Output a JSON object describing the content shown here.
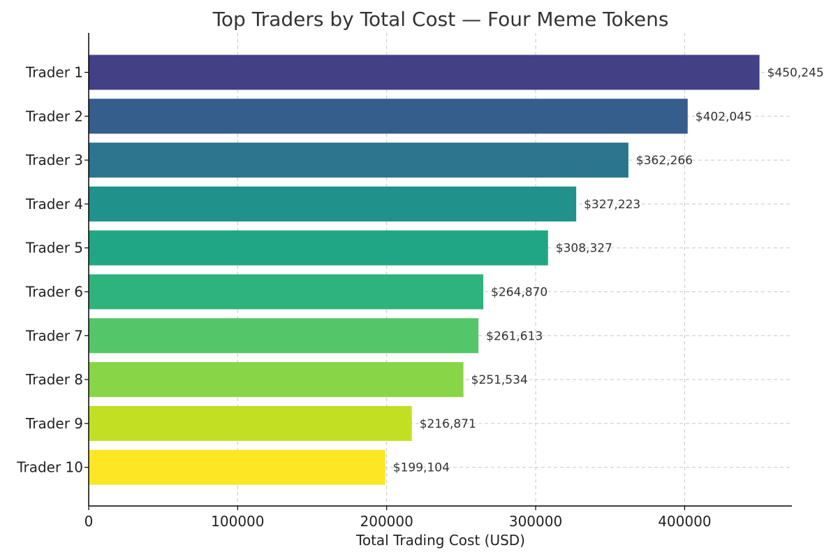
{
  "chart_data": {
    "type": "bar",
    "orientation": "horizontal",
    "title": "Top Traders by Total Cost — Four Meme Tokens",
    "xlabel": "Total Trading Cost (USD)",
    "ylabel": "",
    "xlim": [
      0,
      472000
    ],
    "x_ticks": [
      0,
      100000,
      200000,
      300000,
      400000
    ],
    "grid": true,
    "legend": "none",
    "categories": [
      "Trader 1",
      "Trader 2",
      "Trader 3",
      "Trader 4",
      "Trader 5",
      "Trader 6",
      "Trader 7",
      "Trader 8",
      "Trader 9",
      "Trader 10"
    ],
    "values": [
      450245,
      402045,
      362266,
      327223,
      308327,
      264870,
      261613,
      251534,
      216871,
      199104
    ],
    "value_labels": [
      "$450,245",
      "$402,045",
      "$362,266",
      "$327,223",
      "$308,327",
      "$264,870",
      "$261,613",
      "$251,534",
      "$216,871",
      "$199,104"
    ],
    "colors": [
      "#424186",
      "#355e8d",
      "#2b758e",
      "#21918c",
      "#21a685",
      "#2eb37c",
      "#54c568",
      "#89d548",
      "#c2df23",
      "#fde725"
    ]
  }
}
